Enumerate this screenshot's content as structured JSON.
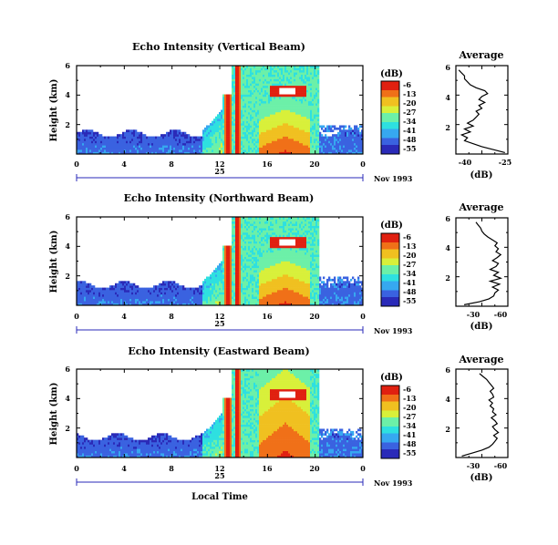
{
  "chart_data": [
    {
      "type": "heatmap",
      "title": "Echo Intensity (Vertical Beam)",
      "ylabel": "Height (km)",
      "xticks": [
        "0",
        "4",
        "8",
        "12",
        "16",
        "20",
        "0"
      ],
      "yticks": [
        "2",
        "4",
        "6"
      ],
      "xlim": [
        0,
        24
      ],
      "ylim": [
        0,
        6
      ],
      "date_day": "25",
      "date_label": "Nov 1993",
      "colorbar": {
        "label": "(dB)",
        "ticks": [
          "-6",
          "-13",
          "-20",
          "-27",
          "-34",
          "-41",
          "-48",
          "-55"
        ]
      },
      "profile": {
        "title": "Average",
        "xlabel": "(dB)",
        "xticks": [
          "-40",
          "-25"
        ],
        "yticks": [
          "2",
          "4",
          "6"
        ],
        "xlim": [
          -43,
          -25
        ],
        "ylim": [
          0,
          6
        ],
        "y": [
          0.1,
          0.3,
          0.5,
          0.7,
          0.9,
          1.1,
          1.3,
          1.5,
          1.7,
          1.9,
          2.1,
          2.3,
          2.5,
          2.7,
          2.9,
          3.1,
          3.3,
          3.5,
          3.7,
          3.9,
          4.1,
          4.3,
          4.5,
          4.7,
          4.9,
          5.1,
          5.3,
          5.5,
          5.7
        ],
        "x": [
          -26,
          -30,
          -34,
          -37,
          -40,
          -39,
          -41,
          -38,
          -40,
          -37,
          -39,
          -37,
          -36,
          -35,
          -36,
          -34,
          -35,
          -33,
          -35,
          -34,
          -32,
          -33,
          -36,
          -38,
          -39,
          -40,
          -40,
          -41,
          -42
        ]
      }
    },
    {
      "type": "heatmap",
      "title": "Echo Intensity (Northward Beam)",
      "ylabel": "Height (km)",
      "xticks": [
        "0",
        "4",
        "8",
        "12",
        "16",
        "20",
        "0"
      ],
      "yticks": [
        "2",
        "4",
        "6"
      ],
      "xlim": [
        0,
        24
      ],
      "ylim": [
        0,
        6
      ],
      "date_day": "25",
      "date_label": "Nov 1993",
      "colorbar": {
        "label": "(dB)",
        "ticks": [
          "-6",
          "-13",
          "-20",
          "-27",
          "-34",
          "-41",
          "-48",
          "-55"
        ]
      },
      "profile": {
        "title": "Average",
        "xlabel": "(dB)",
        "xticks": [
          "-30",
          "-60"
        ],
        "yticks": [
          "2",
          "4",
          "6"
        ],
        "xlim": [
          -62,
          -18
        ],
        "ylim": [
          0,
          6
        ],
        "y": [
          0.1,
          0.3,
          0.5,
          0.7,
          0.9,
          1.1,
          1.3,
          1.5,
          1.7,
          1.9,
          2.1,
          2.3,
          2.5,
          2.7,
          2.9,
          3.1,
          3.3,
          3.5,
          3.7,
          3.9,
          4.1,
          4.3,
          4.5,
          4.7,
          4.9,
          5.1,
          5.3,
          5.5,
          5.7
        ],
        "x": [
          -55,
          -42,
          -34,
          -30,
          -29,
          -26,
          -31,
          -25,
          -33,
          -24,
          -30,
          -26,
          -33,
          -28,
          -26,
          -31,
          -27,
          -24,
          -28,
          -26,
          -29,
          -27,
          -31,
          -35,
          -38,
          -40,
          -41,
          -43,
          -45
        ]
      }
    },
    {
      "type": "heatmap",
      "title": "Echo Intensity (Eastward Beam)",
      "ylabel": "Height (km)",
      "xlabel": "Local Time",
      "xticks": [
        "0",
        "4",
        "8",
        "12",
        "16",
        "20",
        "0"
      ],
      "yticks": [
        "2",
        "4",
        "6"
      ],
      "xlim": [
        0,
        24
      ],
      "ylim": [
        0,
        6
      ],
      "date_day": "25",
      "date_label": "Nov 1993",
      "colorbar": {
        "label": "(dB)",
        "ticks": [
          "-6",
          "-13",
          "-20",
          "-27",
          "-34",
          "-41",
          "-48",
          "-55"
        ]
      },
      "profile": {
        "title": "Average",
        "xlabel": "(dB)",
        "xticks": [
          "-30",
          "-60"
        ],
        "yticks": [
          "2",
          "4",
          "6"
        ],
        "xlim": [
          -62,
          -18
        ],
        "ylim": [
          0,
          6
        ],
        "y": [
          0.1,
          0.3,
          0.5,
          0.7,
          0.9,
          1.1,
          1.3,
          1.5,
          1.7,
          1.9,
          2.1,
          2.3,
          2.5,
          2.7,
          2.9,
          3.1,
          3.3,
          3.5,
          3.7,
          3.9,
          4.1,
          4.3,
          4.5,
          4.7,
          4.9,
          5.1,
          5.3,
          5.5,
          5.7
        ],
        "x": [
          -57,
          -48,
          -40,
          -34,
          -31,
          -29,
          -27,
          -30,
          -26,
          -29,
          -31,
          -27,
          -29,
          -32,
          -28,
          -31,
          -30,
          -33,
          -31,
          -34,
          -30,
          -31,
          -33,
          -30,
          -32,
          -34,
          -36,
          -39,
          -42
        ]
      }
    }
  ],
  "colors": {
    "colormap": [
      "#2a2ab8",
      "#3a62e0",
      "#36a8f0",
      "#2ee0e0",
      "#6cf0a8",
      "#d8f03a",
      "#f0c020",
      "#f07018",
      "#e02010"
    ]
  }
}
